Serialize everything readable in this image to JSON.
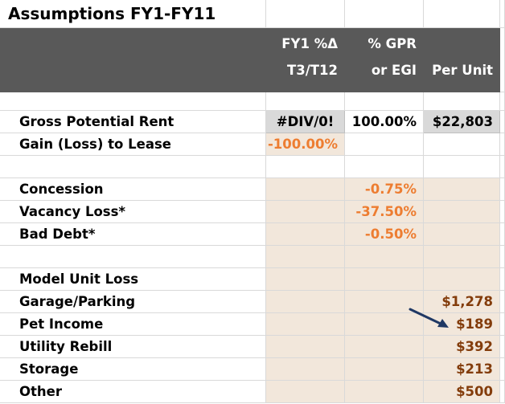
{
  "title": "Assumptions FY1-FY11",
  "headers": {
    "col1_line1": "FY1 %Δ",
    "col1_line2": "T3/T12",
    "col2_line1": "% GPR",
    "col2_line2": "or EGI",
    "col3": "Per Unit"
  },
  "rows": [
    {
      "label": "Gross Potential Rent",
      "pct_change": "#DIV/0!",
      "pct_gpr": "100.00%",
      "per_unit": "$22,803"
    },
    {
      "label": "Gain (Loss) to Lease",
      "pct_change": "-100.00%",
      "pct_gpr": "",
      "per_unit": ""
    },
    {
      "label": "Concession",
      "pct_change": "",
      "pct_gpr": "-0.75%",
      "per_unit": ""
    },
    {
      "label": "Vacancy Loss*",
      "pct_change": "",
      "pct_gpr": "-37.50%",
      "per_unit": ""
    },
    {
      "label": "Bad Debt*",
      "pct_change": "",
      "pct_gpr": "-0.50%",
      "per_unit": ""
    },
    {
      "label": "Model Unit Loss",
      "pct_change": "",
      "pct_gpr": "",
      "per_unit": ""
    },
    {
      "label": "Garage/Parking",
      "pct_change": "",
      "pct_gpr": "",
      "per_unit": "$1,278"
    },
    {
      "label": "Pet Income",
      "pct_change": "",
      "pct_gpr": "",
      "per_unit": "$189"
    },
    {
      "label": "Utility Rebill",
      "pct_change": "",
      "pct_gpr": "",
      "per_unit": "$392"
    },
    {
      "label": "Storage",
      "pct_change": "",
      "pct_gpr": "",
      "per_unit": "$213"
    },
    {
      "label": "Other",
      "pct_change": "",
      "pct_gpr": "",
      "per_unit": "$500"
    }
  ],
  "colors": {
    "header_bg": "#595959",
    "input_bg": "#f2e7db",
    "calc_bg": "#d9d9d9",
    "pct_text": "#ed7d31",
    "per_unit_text": "#833c0b",
    "arrow": "#1f3864"
  },
  "annotation_icon": "arrow-pointing-right-down"
}
